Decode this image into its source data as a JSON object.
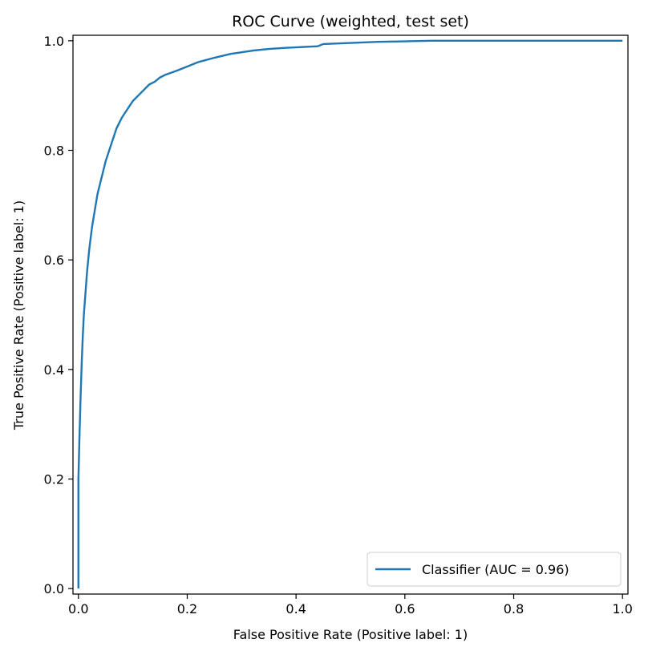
{
  "chart_data": {
    "type": "line",
    "title": "ROC Curve (weighted, test set)",
    "xlabel": "False Positive Rate (Positive label: 1)",
    "ylabel": "True Positive Rate (Positive label: 1)",
    "xlim": [
      -0.01,
      1.01
    ],
    "ylim": [
      -0.01,
      1.01
    ],
    "xticks": [
      "0.0",
      "0.2",
      "0.4",
      "0.6",
      "0.8",
      "1.0"
    ],
    "yticks": [
      "0.0",
      "0.2",
      "0.4",
      "0.6",
      "0.8",
      "1.0"
    ],
    "grid": false,
    "legend_position": "lower-right",
    "series": [
      {
        "name": "Classifier (AUC = 0.96)",
        "color": "#1f77b4",
        "x": [
          0.0,
          0.0,
          0.002,
          0.004,
          0.006,
          0.008,
          0.01,
          0.013,
          0.016,
          0.02,
          0.025,
          0.03,
          0.035,
          0.04,
          0.05,
          0.06,
          0.07,
          0.08,
          0.09,
          0.1,
          0.11,
          0.12,
          0.13,
          0.14,
          0.15,
          0.16,
          0.18,
          0.2,
          0.22,
          0.25,
          0.28,
          0.3,
          0.32,
          0.35,
          0.38,
          0.4,
          0.44,
          0.45,
          0.5,
          0.55,
          0.6,
          0.65,
          0.7,
          0.8,
          0.9,
          1.0
        ],
        "y": [
          0.0,
          0.2,
          0.28,
          0.35,
          0.41,
          0.46,
          0.5,
          0.54,
          0.58,
          0.62,
          0.66,
          0.69,
          0.72,
          0.74,
          0.78,
          0.81,
          0.84,
          0.86,
          0.875,
          0.89,
          0.9,
          0.91,
          0.92,
          0.925,
          0.933,
          0.938,
          0.945,
          0.953,
          0.961,
          0.969,
          0.976,
          0.979,
          0.982,
          0.985,
          0.987,
          0.988,
          0.99,
          0.994,
          0.996,
          0.998,
          0.999,
          1.0,
          1.0,
          1.0,
          1.0,
          1.0
        ]
      }
    ]
  }
}
